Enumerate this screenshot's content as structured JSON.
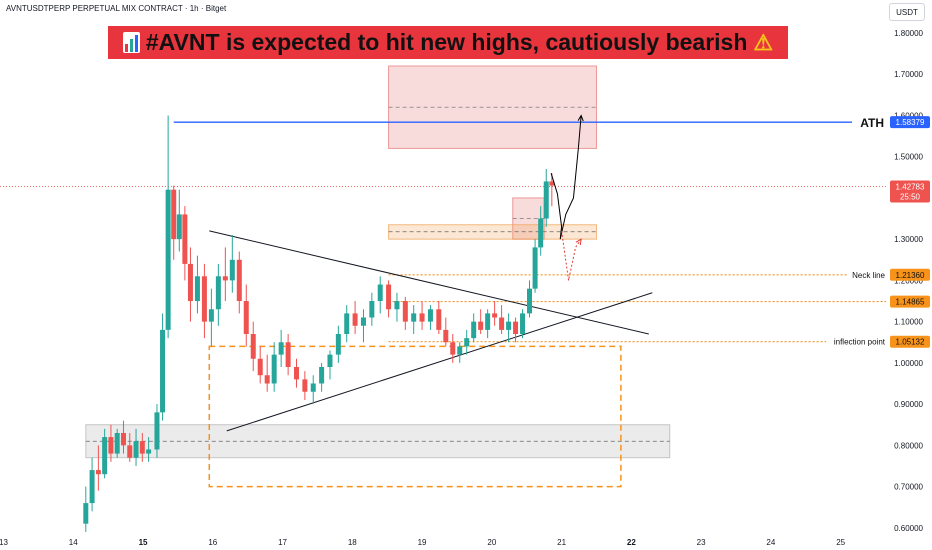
{
  "header": {
    "symbol": "AVNTUSDTPERP PERPETUAL MIX CONTRACT · 1h · Bitget",
    "currency": "USDT"
  },
  "banner": {
    "text": "#AVNT is expected to hit new highs, cautiously bearish",
    "icon_left": "bar-chart-icon",
    "icon_right": "warning-icon",
    "background": "#e8343d"
  },
  "chart_data": {
    "type": "candlestick",
    "title": "#AVNT is expected to hit new highs, cautiously bearish",
    "x_ticks": [
      "13",
      "14",
      "15",
      "16",
      "17",
      "18",
      "19",
      "20",
      "21",
      "22",
      "23",
      "24",
      "25"
    ],
    "y_ticks": [
      "0.60000",
      "0.70000",
      "0.80000",
      "0.90000",
      "1.00000",
      "1.10000",
      "1.20000",
      "1.30000",
      "1.40000",
      "1.50000",
      "1.60000",
      "1.70000",
      "1.80000"
    ],
    "xlim": [
      12.95,
      25.65
    ],
    "ylim": [
      0.585,
      1.88
    ],
    "colors": {
      "up": "#26a69a",
      "down": "#ef5350",
      "resistance": "#2962ff",
      "level": "#f7931a"
    },
    "candles": [
      [
        14.18,
        0.61,
        0.7,
        0.59,
        0.66
      ],
      [
        14.27,
        0.66,
        0.77,
        0.64,
        0.74
      ],
      [
        14.36,
        0.74,
        0.8,
        0.69,
        0.73
      ],
      [
        14.45,
        0.73,
        0.84,
        0.72,
        0.82
      ],
      [
        14.54,
        0.82,
        0.85,
        0.76,
        0.78
      ],
      [
        14.63,
        0.78,
        0.84,
        0.77,
        0.83
      ],
      [
        14.72,
        0.83,
        0.86,
        0.78,
        0.8
      ],
      [
        14.81,
        0.8,
        0.83,
        0.76,
        0.77
      ],
      [
        14.9,
        0.77,
        0.84,
        0.75,
        0.81
      ],
      [
        14.99,
        0.81,
        0.83,
        0.76,
        0.78
      ],
      [
        15.08,
        0.78,
        0.82,
        0.76,
        0.79
      ],
      [
        15.2,
        0.79,
        0.9,
        0.77,
        0.88
      ],
      [
        15.28,
        0.88,
        1.12,
        0.86,
        1.08
      ],
      [
        15.36,
        1.08,
        1.6,
        1.06,
        1.42
      ],
      [
        15.44,
        1.42,
        1.43,
        1.25,
        1.3
      ],
      [
        15.52,
        1.3,
        1.42,
        1.27,
        1.36
      ],
      [
        15.6,
        1.36,
        1.38,
        1.2,
        1.24
      ],
      [
        15.68,
        1.24,
        1.28,
        1.1,
        1.15
      ],
      [
        15.78,
        1.15,
        1.26,
        1.12,
        1.21
      ],
      [
        15.88,
        1.21,
        1.24,
        1.06,
        1.1
      ],
      [
        15.98,
        1.1,
        1.18,
        1.04,
        1.13
      ],
      [
        16.08,
        1.13,
        1.24,
        1.09,
        1.21
      ],
      [
        16.18,
        1.21,
        1.28,
        1.15,
        1.2
      ],
      [
        16.28,
        1.2,
        1.31,
        1.17,
        1.25
      ],
      [
        16.38,
        1.25,
        1.27,
        1.12,
        1.15
      ],
      [
        16.48,
        1.15,
        1.19,
        1.04,
        1.07
      ],
      [
        16.58,
        1.07,
        1.1,
        0.98,
        1.01
      ],
      [
        16.68,
        1.01,
        1.04,
        0.95,
        0.97
      ],
      [
        16.78,
        0.97,
        1.02,
        0.93,
        0.95
      ],
      [
        16.88,
        0.95,
        1.05,
        0.93,
        1.02
      ],
      [
        16.98,
        1.02,
        1.08,
        0.99,
        1.05
      ],
      [
        17.08,
        1.05,
        1.07,
        0.97,
        0.99
      ],
      [
        17.2,
        0.99,
        1.01,
        0.94,
        0.96
      ],
      [
        17.32,
        0.96,
        0.98,
        0.91,
        0.93
      ],
      [
        17.44,
        0.93,
        0.97,
        0.9,
        0.95
      ],
      [
        17.56,
        0.95,
        1.0,
        0.93,
        0.99
      ],
      [
        17.68,
        0.99,
        1.03,
        0.96,
        1.02
      ],
      [
        17.8,
        1.02,
        1.09,
        1.0,
        1.07
      ],
      [
        17.92,
        1.07,
        1.14,
        1.05,
        1.12
      ],
      [
        18.04,
        1.12,
        1.15,
        1.07,
        1.09
      ],
      [
        18.16,
        1.09,
        1.13,
        1.05,
        1.11
      ],
      [
        18.28,
        1.11,
        1.17,
        1.09,
        1.15
      ],
      [
        18.4,
        1.15,
        1.21,
        1.12,
        1.19
      ],
      [
        18.52,
        1.19,
        1.2,
        1.11,
        1.13
      ],
      [
        18.64,
        1.13,
        1.17,
        1.1,
        1.15
      ],
      [
        18.76,
        1.15,
        1.16,
        1.08,
        1.1
      ],
      [
        18.88,
        1.1,
        1.14,
        1.07,
        1.12
      ],
      [
        19.0,
        1.12,
        1.15,
        1.08,
        1.1
      ],
      [
        19.12,
        1.1,
        1.14,
        1.08,
        1.13
      ],
      [
        19.24,
        1.13,
        1.15,
        1.07,
        1.08
      ],
      [
        19.34,
        1.08,
        1.11,
        1.04,
        1.05
      ],
      [
        19.44,
        1.05,
        1.07,
        1.0,
        1.02
      ],
      [
        19.54,
        1.02,
        1.05,
        1.0,
        1.04
      ],
      [
        19.64,
        1.04,
        1.08,
        1.02,
        1.06
      ],
      [
        19.74,
        1.06,
        1.12,
        1.05,
        1.1
      ],
      [
        19.84,
        1.1,
        1.13,
        1.07,
        1.08
      ],
      [
        19.94,
        1.08,
        1.13,
        1.06,
        1.12
      ],
      [
        20.04,
        1.12,
        1.15,
        1.09,
        1.11
      ],
      [
        20.14,
        1.11,
        1.14,
        1.07,
        1.08
      ],
      [
        20.24,
        1.08,
        1.12,
        1.05,
        1.1
      ],
      [
        20.34,
        1.1,
        1.11,
        1.05,
        1.07
      ],
      [
        20.44,
        1.07,
        1.13,
        1.06,
        1.12
      ],
      [
        20.54,
        1.12,
        1.2,
        1.11,
        1.18
      ],
      [
        20.62,
        1.18,
        1.3,
        1.17,
        1.28
      ],
      [
        20.7,
        1.28,
        1.38,
        1.26,
        1.35
      ],
      [
        20.78,
        1.35,
        1.47,
        1.33,
        1.44
      ],
      [
        20.86,
        1.44,
        1.46,
        1.38,
        1.43
      ]
    ],
    "levels": [
      {
        "label": "ATH",
        "value": 1.58379,
        "price_tag": "1.58379",
        "style": "resistance"
      },
      {
        "label": "",
        "value": 1.42783,
        "price_tag": "1.42783",
        "countdown": "25:50",
        "style": "current"
      },
      {
        "label": "Neck line",
        "value": 1.2136,
        "price_tag": "1.21360",
        "style": "level"
      },
      {
        "label": "",
        "value": 1.14865,
        "price_tag": "1.14865",
        "style": "level"
      },
      {
        "label": "inflection point",
        "value": 1.05132,
        "price_tag": "1.05132",
        "style": "level"
      }
    ],
    "zones": [
      {
        "x": [
          18.52,
          21.5
        ],
        "y": [
          1.52,
          1.72
        ],
        "color": "#e57373",
        "mid": 1.62
      },
      {
        "x": [
          20.3,
          20.75
        ],
        "y": [
          1.3,
          1.4
        ],
        "color": "#e57373",
        "mid": 1.35
      },
      {
        "x": [
          18.52,
          21.5
        ],
        "y": [
          1.3,
          1.335
        ],
        "color": "#f0a050",
        "mid": 1.318
      },
      {
        "x": [
          14.18,
          22.55
        ],
        "y": [
          0.77,
          0.85
        ],
        "color": "#b0b0b0",
        "mid": 0.81
      },
      {
        "x": [
          15.95,
          21.85
        ],
        "y": [
          0.7,
          1.04
        ],
        "color": "#f7931a",
        "dashed": true
      }
    ],
    "trendlines": [
      {
        "x1": 15.95,
        "y1": 1.32,
        "x2": 22.25,
        "y2": 1.07
      },
      {
        "x1": 16.2,
        "y1": 0.835,
        "x2": 22.3,
        "y2": 1.17
      }
    ],
    "projections": [
      {
        "points": [
          [
            20.85,
            1.46
          ],
          [
            20.94,
            1.41
          ],
          [
            21.0,
            1.33
          ],
          [
            20.98,
            1.3
          ],
          [
            21.06,
            1.36
          ],
          [
            21.17,
            1.4
          ],
          [
            21.24,
            1.52
          ],
          [
            21.28,
            1.6
          ]
        ],
        "color": "#000000"
      },
      {
        "points": [
          [
            21.0,
            1.32
          ],
          [
            21.1,
            1.2
          ],
          [
            21.2,
            1.28
          ],
          [
            21.28,
            1.3
          ]
        ],
        "color": "#e53935",
        "dashed": true
      }
    ]
  }
}
